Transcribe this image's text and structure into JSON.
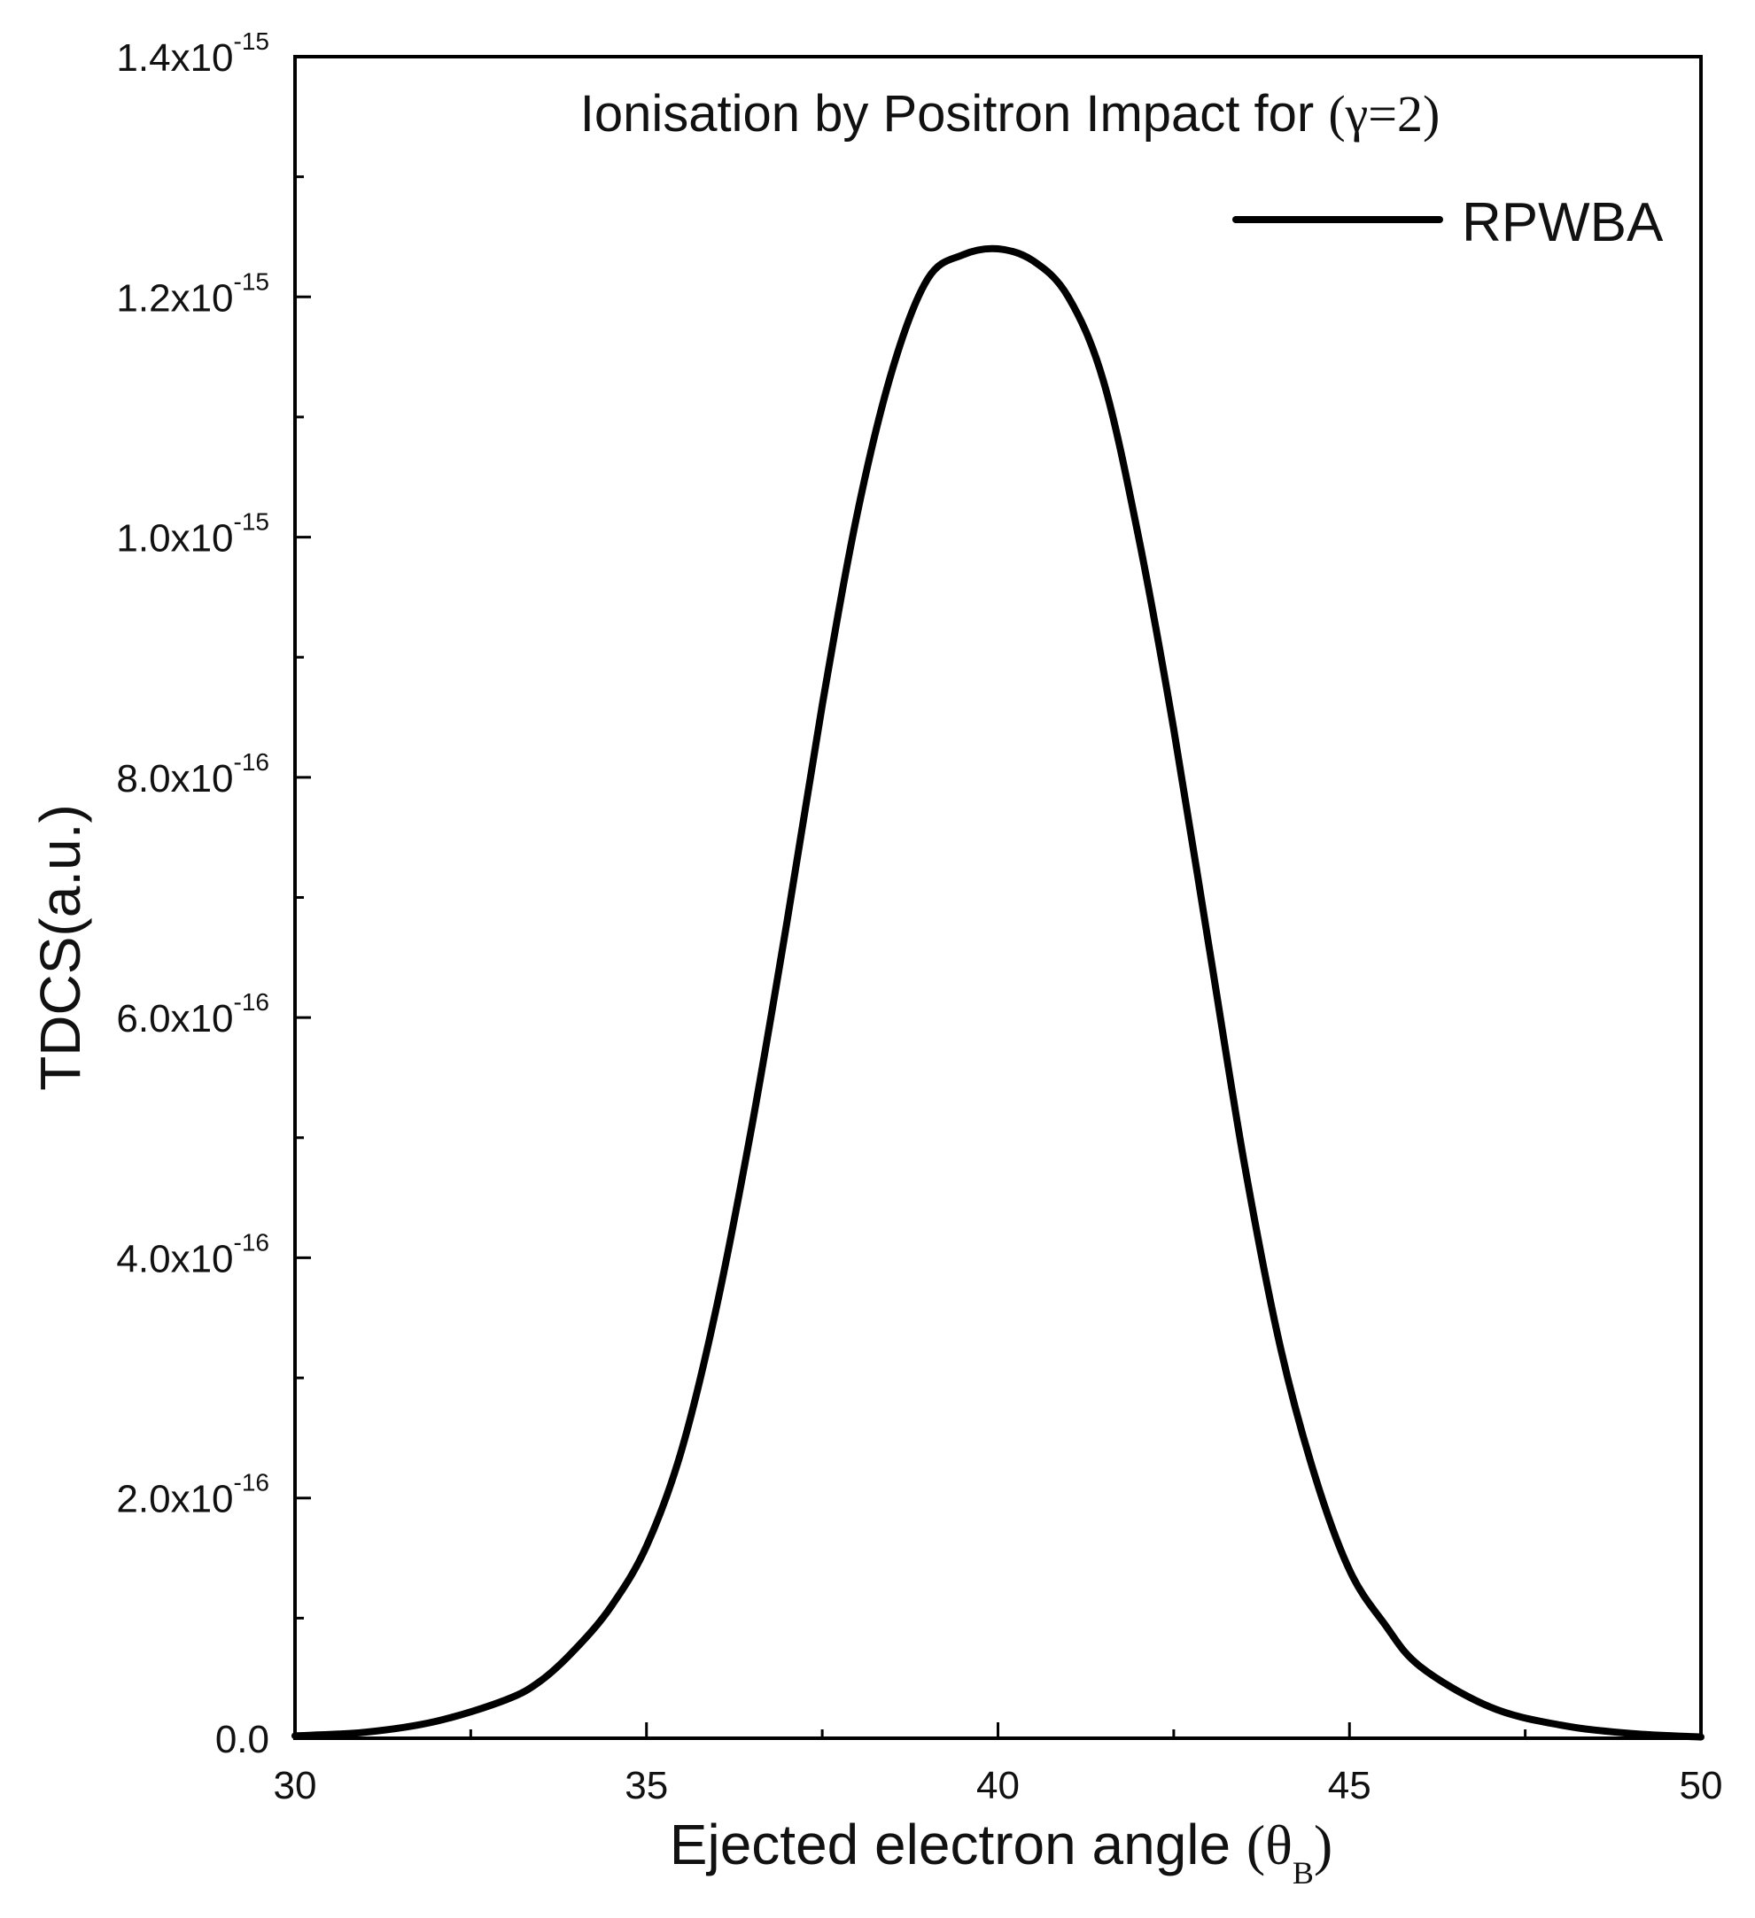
{
  "chart_data": {
    "type": "line",
    "title": "Ionisation by Positron Impact for ",
    "title_suffix": "(γ=2)",
    "xlabel": "Ejected electron angle ",
    "xlabel_symbol": "(θ",
    "xlabel_subscript": "B",
    "xlabel_close": ")",
    "ylabel": "TDCS(a.u.)",
    "xlim": [
      30,
      50
    ],
    "ylim": [
      0,
      1.4e-15
    ],
    "x_ticks": [
      30,
      35,
      40,
      45,
      50
    ],
    "x_tick_labels": [
      "30",
      "35",
      "40",
      "45",
      "50"
    ],
    "x_minor_ticks": [
      32.5,
      37.5,
      42.5,
      47.5
    ],
    "y_ticks": [
      0,
      2e-16,
      4e-16,
      6e-16,
      8e-16,
      1e-15,
      1.2e-15,
      1.4e-15
    ],
    "y_tick_labels": [
      {
        "mantissa": "0.0",
        "exponent": ""
      },
      {
        "mantissa": "2.0x10",
        "exponent": "-16"
      },
      {
        "mantissa": "4.0x10",
        "exponent": "-16"
      },
      {
        "mantissa": "6.0x10",
        "exponent": "-16"
      },
      {
        "mantissa": "8.0x10",
        "exponent": "-16"
      },
      {
        "mantissa": "1.0x10",
        "exponent": "-15"
      },
      {
        "mantissa": "1.2x10",
        "exponent": "-15"
      },
      {
        "mantissa": "1.4x10",
        "exponent": "-15"
      }
    ],
    "y_minor_ticks": [
      1e-16,
      3e-16,
      5e-16,
      7e-16,
      9e-16,
      1.1e-15,
      1.3e-15
    ],
    "legend_position": "top-right",
    "series": [
      {
        "name": "RPWBA",
        "color": "#000000",
        "x": [
          30,
          31,
          32,
          33,
          33.5,
          34,
          34.5,
          35,
          35.5,
          36,
          36.5,
          37,
          37.5,
          38,
          38.5,
          39,
          39.5,
          40,
          40.5,
          41,
          41.5,
          42,
          42.5,
          43,
          43.5,
          44,
          44.5,
          45,
          45.5,
          46,
          47,
          48,
          49,
          50
        ],
        "y": [
          2e-18,
          5e-18,
          1.4e-17,
          3.2e-17,
          4.8e-17,
          7.5e-17,
          1.1e-16,
          1.6e-16,
          2.4e-16,
          3.6e-16,
          5.1e-16,
          6.8e-16,
          8.6e-16,
          1.02e-15,
          1.14e-15,
          1.215e-15,
          1.235e-15,
          1.24e-15,
          1.23e-15,
          1.2e-15,
          1.13e-15,
          1e-15,
          8.4e-16,
          6.6e-16,
          4.8e-16,
          3.3e-16,
          2.2e-16,
          1.4e-16,
          9.5e-17,
          6e-17,
          2.6e-17,
          1.1e-17,
          4e-18,
          1e-18
        ]
      }
    ]
  }
}
